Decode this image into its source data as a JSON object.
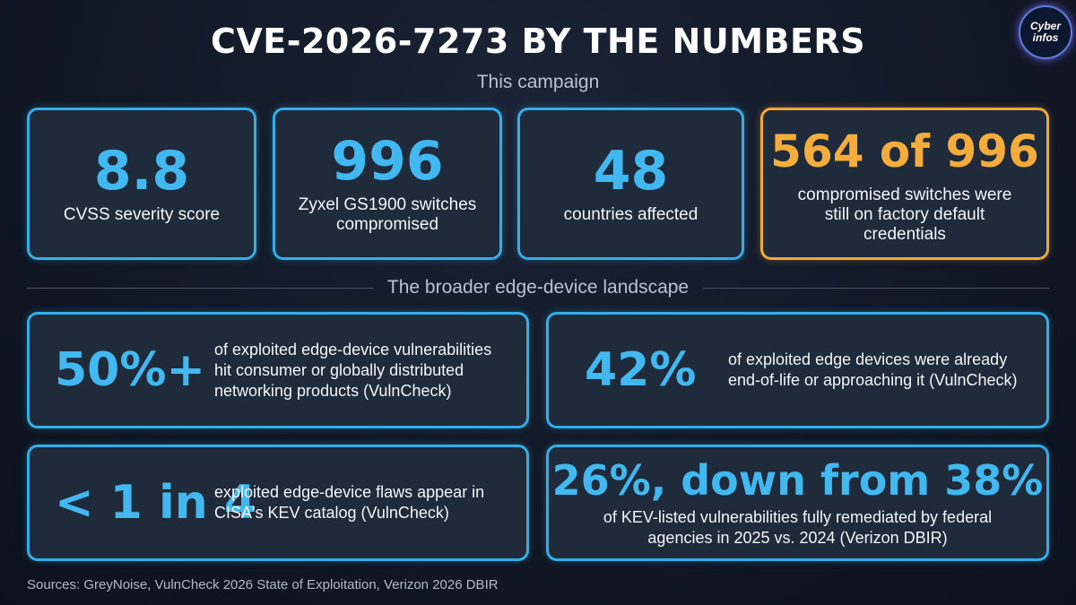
{
  "title": "CVE-2026-7273 BY THE NUMBERS",
  "subtitle": "This campaign",
  "logo": {
    "line1": "Cyber",
    "line2": "infos"
  },
  "campaign_stats": [
    {
      "value": "8.8",
      "label": "CVSS severity score"
    },
    {
      "value": "996",
      "label": "Zyxel GS1900 switches compromised"
    },
    {
      "value": "48",
      "label": "countries affected"
    },
    {
      "value": "564 of 996",
      "label": "compromised switches were still on factory default credentials"
    }
  ],
  "section_label": "The broader edge-device landscape",
  "landscape_stats": [
    {
      "value": "50%+",
      "label": "of exploited edge-device vulnerabilities hit consumer or globally distributed networking products (VulnCheck)"
    },
    {
      "value": "42%",
      "label": "of exploited edge devices were already end-of-life or approaching it (VulnCheck)"
    },
    {
      "value": "< 1 in 4",
      "label": "exploited edge-device flaws appear in CISA's KEV catalog (VulnCheck)"
    },
    {
      "value": "26%, down from 38%",
      "label": "of KEV-listed vulnerabilities fully remediated by federal agencies in 2025 vs. 2024 (Verizon DBIR)"
    }
  ],
  "sources": "Sources: GreyNoise, VulnCheck 2026 State of Exploitation, Verizon 2026 DBIR",
  "colors": {
    "accent_blue": "#41b8f0",
    "accent_orange": "#f4ac3a",
    "card_bg": "#1f2a3b"
  }
}
